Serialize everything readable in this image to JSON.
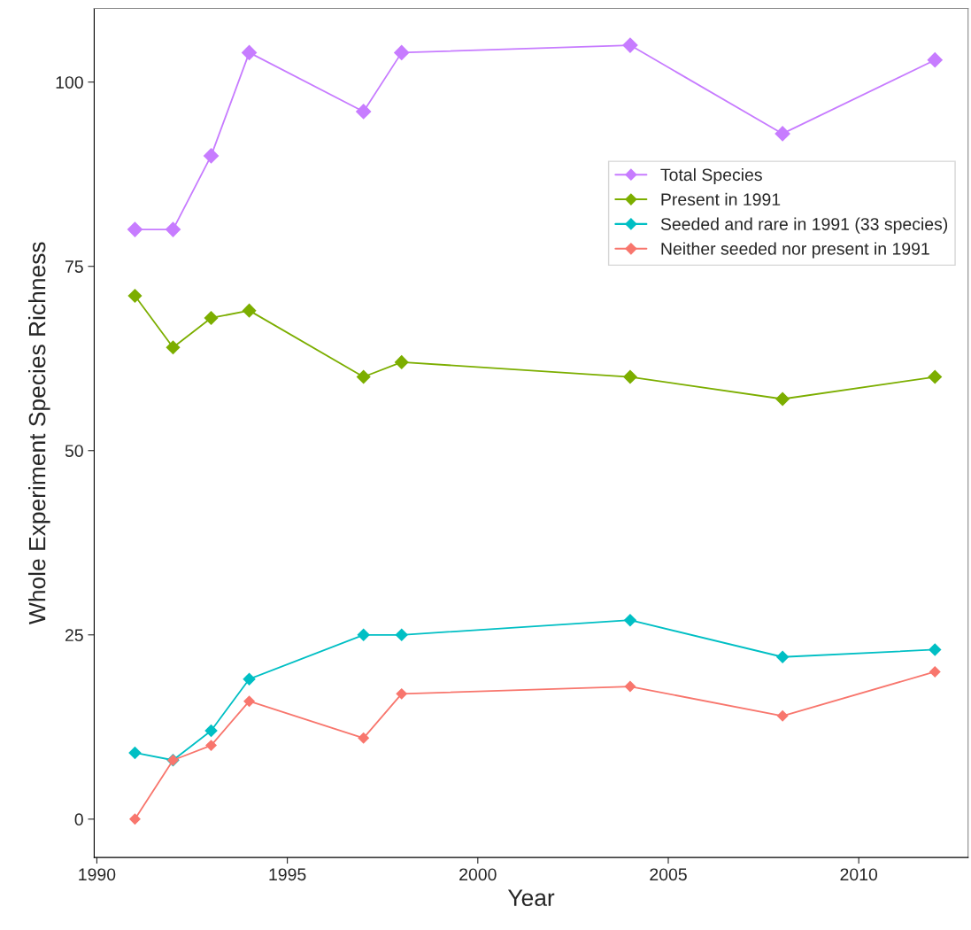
{
  "chart_data": {
    "type": "line",
    "xlabel": "Year",
    "ylabel": "Whole Experiment Species Richness",
    "x": [
      1991,
      1992,
      1993,
      1994,
      1997,
      1998,
      2004,
      2008,
      2012
    ],
    "series": [
      {
        "name": "Total Species",
        "color": "#c77cff",
        "values": [
          80,
          80,
          90,
          104,
          96,
          104,
          105,
          93,
          103
        ]
      },
      {
        "name": "Present in 1991",
        "color": "#7cae00",
        "values": [
          71,
          64,
          68,
          69,
          60,
          62,
          60,
          57,
          60
        ]
      },
      {
        "name": "Seeded and rare in 1991 (33 species)",
        "color": "#00bfc4",
        "values": [
          9,
          8,
          12,
          19,
          25,
          25,
          27,
          22,
          23
        ]
      },
      {
        "name": "Neither seeded nor present in 1991",
        "color": "#f8766d",
        "values": [
          0,
          8,
          10,
          16,
          11,
          17,
          18,
          14,
          20
        ]
      }
    ],
    "xlim": [
      1989.93,
      2012.87
    ],
    "xticks": [
      1990,
      1995,
      2000,
      2005,
      2010
    ],
    "ylim": [
      -5.2,
      110
    ],
    "yticks": [
      0,
      25,
      50,
      75,
      100
    ],
    "grid": false,
    "legend": "top right",
    "marker": "diamond",
    "line_style": "solid"
  }
}
